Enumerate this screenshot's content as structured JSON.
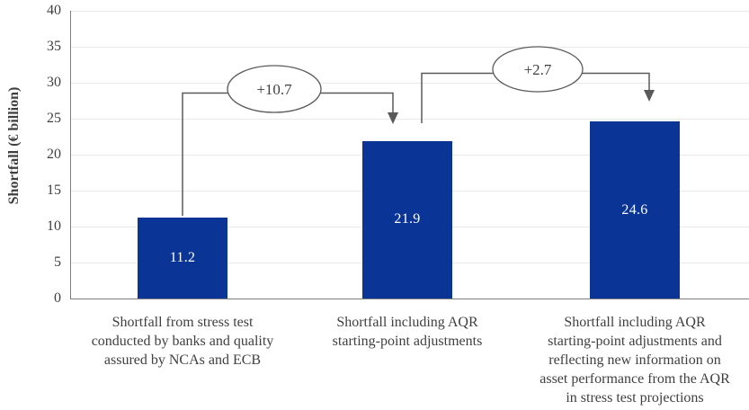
{
  "chart_data": {
    "type": "bar",
    "title": "",
    "xlabel": "",
    "ylabel": "Shortfall (€ billion)",
    "ylim": [
      0,
      40
    ],
    "ytick_step": 5,
    "yticks": [
      0,
      5,
      10,
      15,
      20,
      25,
      30,
      35,
      40
    ],
    "grid": true,
    "legend": false,
    "categories": [
      "Shortfall from stress test conducted by banks and quality assured by NCAs and ECB",
      "Shortfall including AQR starting-point adjustments",
      "Shortfall including AQR starting-point adjustments and reflecting new information on asset performance  from the AQR in stress test projections"
    ],
    "values": [
      11.2,
      21.9,
      24.6
    ],
    "bar_labels": [
      "11.2",
      "21.9",
      "24.6"
    ],
    "annotations": [
      {
        "label": "+10.7",
        "from_bar": 0,
        "to_bar": 1
      },
      {
        "label": "+2.7",
        "from_bar": 1,
        "to_bar": 2
      }
    ],
    "colors": {
      "bar": "#0a3596",
      "bar_value_text": "#ffffff",
      "connector": "#5a5a5a",
      "axis": "#7f7f7f",
      "gridline": "#e9e9e9",
      "text": "#3f3f3f",
      "ellipse_fill": "#ffffff"
    }
  }
}
